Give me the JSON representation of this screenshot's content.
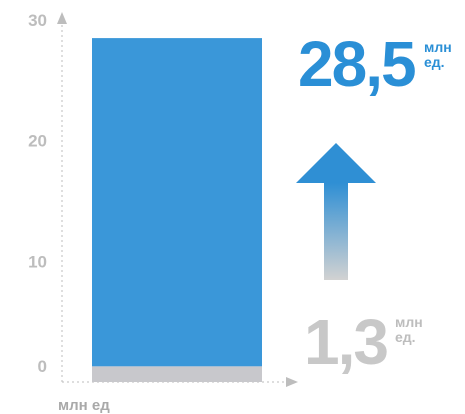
{
  "chart_data": {
    "type": "bar",
    "categories": [
      ""
    ],
    "series": [
      {
        "values": [
          1.3
        ],
        "color": "#c8c8cc"
      },
      {
        "values": [
          27.2
        ],
        "color": "#3a97d9"
      }
    ],
    "stacked": true,
    "ylim": [
      0,
      30
    ],
    "yticks": [
      0,
      10,
      20,
      30
    ],
    "ytick_labels": [
      "0",
      "10",
      "20",
      "30"
    ],
    "xlabel": "млн ед",
    "ylabel": "",
    "title": "",
    "grid": false,
    "annotations": {
      "after_value": "28,5",
      "after_unit_line1": "млн",
      "after_unit_line2": "ед.",
      "before_value": "1,3",
      "before_unit_line1": "млн",
      "before_unit_line2": "ед."
    },
    "colors": {
      "accent": "#2a8fd6",
      "base": "#c8c8cc",
      "arrow_top": "#3a97d9",
      "arrow_bottom": "#d0d0d0"
    }
  }
}
